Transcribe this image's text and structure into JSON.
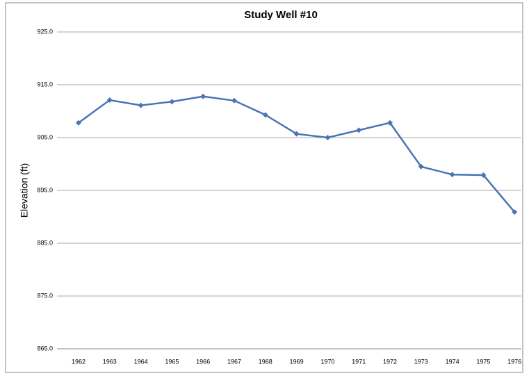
{
  "chart_data": {
    "type": "line",
    "title": "Study Well #10",
    "y_label": "Elevation (ft)",
    "categories": [
      "1962",
      "1963",
      "1964",
      "1965",
      "1966",
      "1967",
      "1968",
      "1969",
      "1970",
      "1971",
      "1972",
      "1973",
      "1974",
      "1975",
      "1976"
    ],
    "series": [
      {
        "name": "Study Well #10",
        "color": "#4a74b4",
        "values": [
          907.8,
          912.1,
          911.1,
          911.8,
          912.8,
          912.0,
          909.3,
          905.7,
          905.0,
          906.4,
          907.8,
          899.5,
          898.0,
          897.9,
          890.9
        ]
      }
    ],
    "ylim": [
      865,
      925
    ],
    "yticks": [
      {
        "value": 865,
        "label": "865.0"
      },
      {
        "value": 875,
        "label": "875.0"
      },
      {
        "value": 885,
        "label": "885.0"
      },
      {
        "value": 895,
        "label": "895.0"
      },
      {
        "value": 905,
        "label": "905.0"
      },
      {
        "value": 915,
        "label": "915.0"
      },
      {
        "value": 925,
        "label": "925.0"
      }
    ],
    "grid": true
  }
}
